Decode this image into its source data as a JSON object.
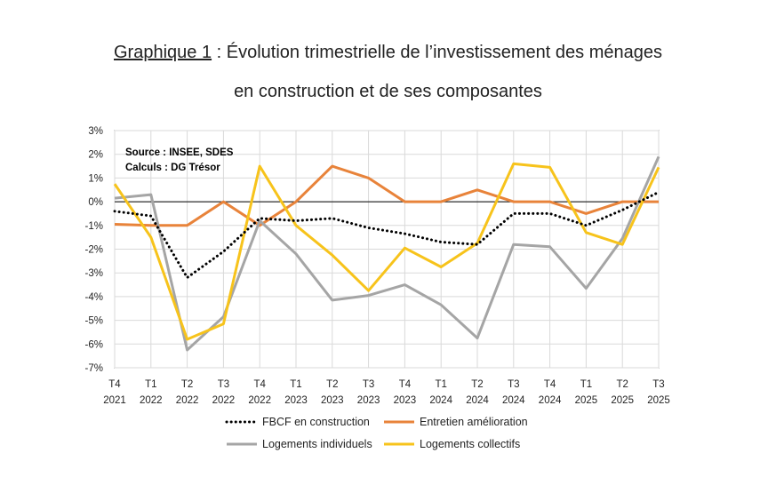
{
  "header": {
    "title_underlined": "Graphique 1",
    "title_rest": " : Évolution trimestrielle de l’investissement des ménages",
    "title_line2": "en construction et de ses composantes"
  },
  "chart_data": {
    "type": "line",
    "title": "Graphique 1 : Évolution trimestrielle de l’investissement des ménages en construction et de ses composantes",
    "source": "Source : INSEE, SDES",
    "calculs": "Calculs : DG Trésor",
    "categories": [
      {
        "q": "T4",
        "y": "2021"
      },
      {
        "q": "T1",
        "y": "2022"
      },
      {
        "q": "T2",
        "y": "2022"
      },
      {
        "q": "T3",
        "y": "2022"
      },
      {
        "q": "T4",
        "y": "2022"
      },
      {
        "q": "T1",
        "y": "2023"
      },
      {
        "q": "T2",
        "y": "2023"
      },
      {
        "q": "T3",
        "y": "2023"
      },
      {
        "q": "T4",
        "y": "2023"
      },
      {
        "q": "T1",
        "y": "2024"
      },
      {
        "q": "T2",
        "y": "2024"
      },
      {
        "q": "T3",
        "y": "2024"
      },
      {
        "q": "T4",
        "y": "2024"
      },
      {
        "q": "T1",
        "y": "2025"
      },
      {
        "q": "T2",
        "y": "2025"
      },
      {
        "q": "T3",
        "y": "2025"
      }
    ],
    "ylim": [
      -7,
      3
    ],
    "yticks": [
      3,
      2,
      1,
      0,
      -1,
      -2,
      -3,
      -4,
      -5,
      -6,
      -7
    ],
    "ytick_labels": [
      "3%",
      "2%",
      "1%",
      "0%",
      "-1%",
      "-2%",
      "-3%",
      "-4%",
      "-5%",
      "-6%",
      "-7%"
    ],
    "grid": true,
    "legend_position": "bottom",
    "series": [
      {
        "name": "FBCF en construction",
        "color": "#000000",
        "style": "dotted",
        "values": [
          -0.4,
          -0.6,
          -3.2,
          -2.1,
          -0.7,
          -0.8,
          -0.7,
          -1.1,
          -1.35,
          -1.7,
          -1.8,
          -0.5,
          -0.5,
          -1.0,
          -0.35,
          0.4
        ]
      },
      {
        "name": "Entretien amélioration",
        "color": "#E8833A",
        "style": "solid",
        "values": [
          -0.95,
          -1.0,
          -1.0,
          0.0,
          -1.0,
          0.0,
          1.5,
          1.0,
          0.0,
          0.0,
          0.5,
          0.0,
          0.0,
          -0.5,
          0.0,
          0.0
        ]
      },
      {
        "name": "Logements individuels",
        "color": "#A5A5A5",
        "style": "solid",
        "values": [
          0.15,
          0.3,
          -6.25,
          -4.85,
          -0.8,
          -2.2,
          -4.15,
          -3.95,
          -3.5,
          -4.35,
          -5.75,
          -1.8,
          -1.9,
          -3.65,
          -1.55,
          1.9
        ]
      },
      {
        "name": "Logements collectifs",
        "color": "#F7C31B",
        "style": "solid",
        "values": [
          0.75,
          -1.5,
          -5.8,
          -5.15,
          1.5,
          -1.0,
          -2.25,
          -3.75,
          -1.95,
          -2.75,
          -1.75,
          1.6,
          1.45,
          -1.3,
          -1.8,
          1.45
        ]
      }
    ]
  }
}
